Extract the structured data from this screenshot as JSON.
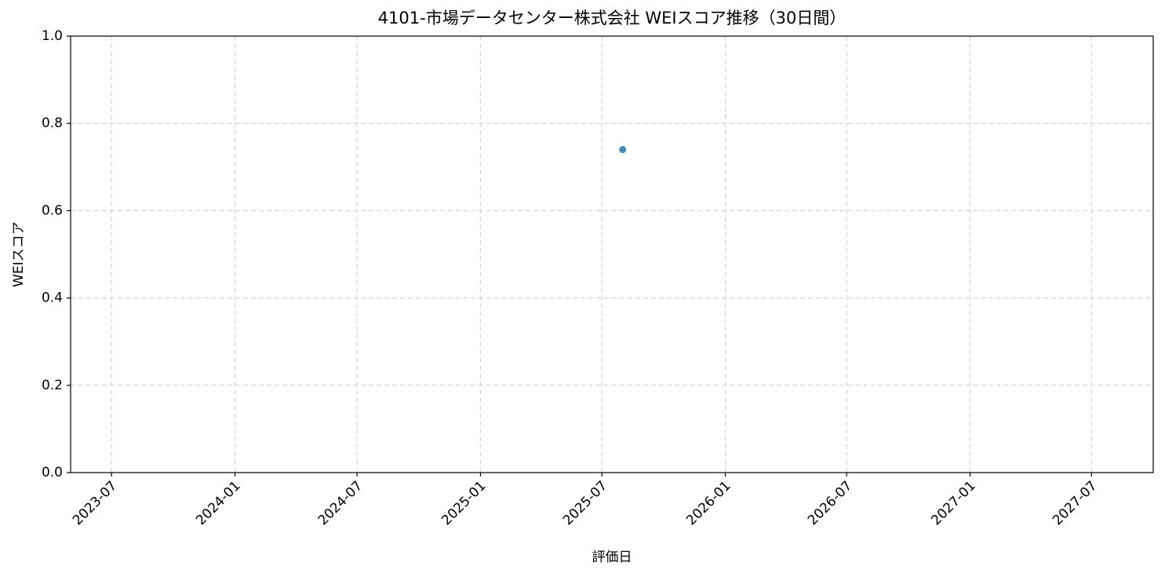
{
  "chart_data": {
    "type": "scatter",
    "title": "4101-市場データセンター株式会社 WEIスコア推移（30日間）",
    "x_label": "評価日",
    "y_label": "WEIスコア",
    "x": [
      "2025-08"
    ],
    "values": [
      0.74
    ],
    "color": "#1f77b4",
    "xlim": [
      "2023-05",
      "2027-10"
    ],
    "xticks": [
      "2023-07",
      "2024-01",
      "2024-07",
      "2025-01",
      "2025-07",
      "2026-01",
      "2026-07",
      "2027-01",
      "2027-07"
    ],
    "ylim": [
      0,
      1
    ],
    "yticks": [
      {
        "value": 0,
        "label": "0.0"
      },
      0.2,
      0.4,
      0.6,
      0.8,
      {
        "value": 1,
        "label": "1.0"
      }
    ],
    "grid": true
  }
}
